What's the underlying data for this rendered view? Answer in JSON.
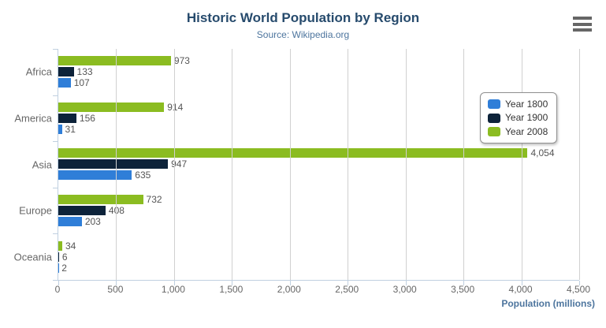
{
  "header": {
    "title": "Historic World Population by Region",
    "subtitle": "Source: Wikipedia.org"
  },
  "toolbar": {
    "menu_icon": "hamburger-menu-icon"
  },
  "chart_data": {
    "type": "bar",
    "orientation": "horizontal",
    "title": "Historic World Population by Region",
    "subtitle": "Source: Wikipedia.org",
    "categories": [
      "Africa",
      "America",
      "Asia",
      "Europe",
      "Oceania"
    ],
    "series": [
      {
        "name": "Year 1800",
        "color": "#2f7ed8",
        "values": [
          107,
          31,
          635,
          203,
          2
        ]
      },
      {
        "name": "Year 1900",
        "color": "#0d233a",
        "values": [
          133,
          156,
          947,
          408,
          6
        ]
      },
      {
        "name": "Year 2008",
        "color": "#8bbc21",
        "values": [
          973,
          914,
          4054,
          732,
          34
        ]
      }
    ],
    "bar_order_top_to_bottom": [
      "Year 2008",
      "Year 1900",
      "Year 1800"
    ],
    "xlabel": "Population (millions)",
    "ylabel": "",
    "xlim": [
      0,
      4500
    ],
    "x_ticks": [
      {
        "value": 0,
        "label": "0"
      },
      {
        "value": 500,
        "label": "500"
      },
      {
        "value": 1000,
        "label": "1,000"
      },
      {
        "value": 1500,
        "label": "1,500"
      },
      {
        "value": 2000,
        "label": "2,000"
      },
      {
        "value": 2500,
        "label": "2,500"
      },
      {
        "value": 3000,
        "label": "3,000"
      },
      {
        "value": 3500,
        "label": "3,500"
      },
      {
        "value": 4000,
        "label": "4,000"
      },
      {
        "value": 4500,
        "label": "4,500"
      }
    ],
    "grid": true,
    "value_labels": true,
    "legend_position": "right"
  },
  "colors": {
    "title": "#274b6d",
    "subtitle": "#4d759e",
    "category_label": "#666666",
    "tick_label": "#666666",
    "value_label": "#555555",
    "grid": "#d0d0d0",
    "axis_line": "#c0d0e0",
    "legend_border": "#909090",
    "legend_label": "#333333",
    "menu_icon": "#666666"
  }
}
